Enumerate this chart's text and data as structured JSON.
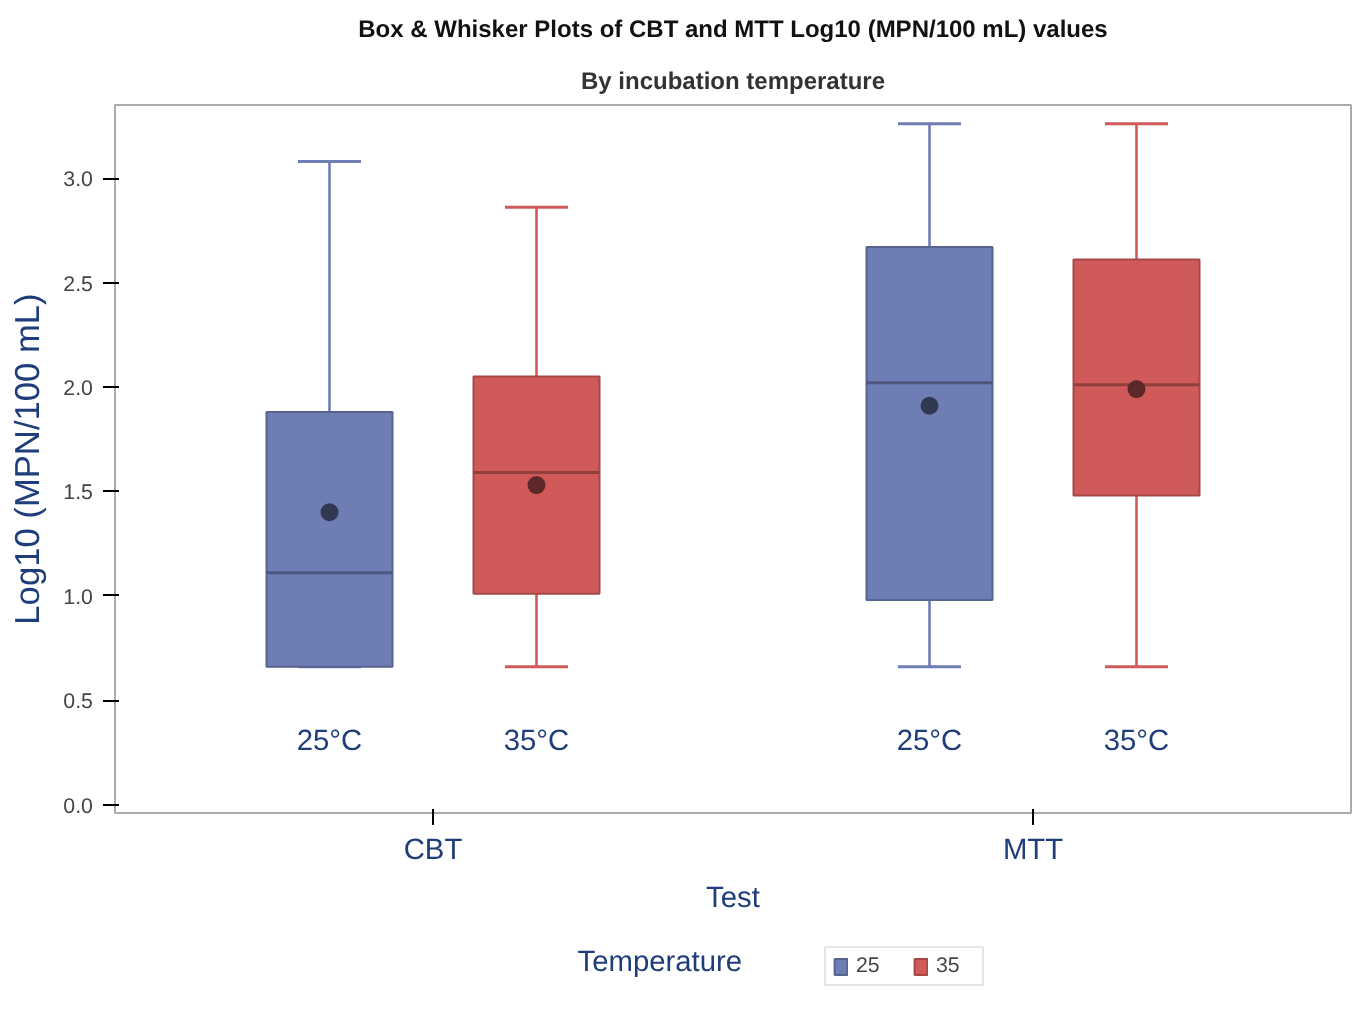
{
  "chart_data": {
    "type": "box",
    "title": "Box & Whisker Plots of CBT and MTT Log10 (MPN/100 mL) values",
    "subtitle": "By incubation temperature",
    "xlabel": "Test",
    "ylabel": "Log10 (MPN/100 mL)",
    "legend_title": "Temperature",
    "categories": [
      "CBT",
      "MTT"
    ],
    "series": [
      {
        "name": "25",
        "color": "#6f7db5",
        "boxes": [
          {
            "low": 0.66,
            "q1": 0.66,
            "median": 1.11,
            "q3": 1.88,
            "high": 3.08,
            "mean": 1.4
          },
          {
            "low": 0.66,
            "q1": 0.98,
            "median": 2.02,
            "q3": 2.67,
            "high": 3.26,
            "mean": 1.91
          }
        ]
      },
      {
        "name": "35",
        "color": "#d05a5a",
        "boxes": [
          {
            "low": 0.66,
            "q1": 1.01,
            "median": 1.59,
            "q3": 2.05,
            "high": 2.86,
            "mean": 1.53
          },
          {
            "low": 0.66,
            "q1": 1.48,
            "median": 2.01,
            "q3": 2.61,
            "high": 3.26,
            "mean": 1.99
          }
        ]
      }
    ],
    "annotations": [
      "25°C",
      "35°C",
      "25°C",
      "35°C"
    ],
    "ylim": [
      -0.04,
      3.35
    ],
    "yticks": [
      {
        "value": 0,
        "label": "0.0"
      },
      {
        "value": 0.5,
        "label": "0.5"
      },
      {
        "value": 1,
        "label": "1.0"
      },
      {
        "value": 1.5,
        "label": "1.5"
      },
      {
        "value": 2,
        "label": "2.0"
      },
      {
        "value": 2.5,
        "label": "2.5"
      },
      {
        "value": 3,
        "label": "3.0"
      }
    ],
    "grid": false,
    "legend": "bottom"
  }
}
